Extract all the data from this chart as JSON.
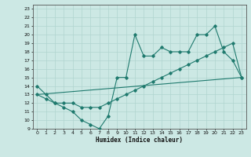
{
  "xlabel": "Humidex (Indice chaleur)",
  "xlim": [
    -0.5,
    23.5
  ],
  "ylim": [
    9,
    23.5
  ],
  "xticks": [
    0,
    1,
    2,
    3,
    4,
    5,
    6,
    7,
    8,
    9,
    10,
    11,
    12,
    13,
    14,
    15,
    16,
    17,
    18,
    19,
    20,
    21,
    22,
    23
  ],
  "yticks": [
    9,
    10,
    11,
    12,
    13,
    14,
    15,
    16,
    17,
    18,
    19,
    20,
    21,
    22,
    23
  ],
  "line_color": "#1f7a6e",
  "bg_color": "#cce8e4",
  "grid_color": "#b0d4cf",
  "line1_x": [
    0,
    1,
    2,
    3,
    4,
    5,
    6,
    7,
    8,
    9,
    10,
    11,
    12,
    13,
    14,
    15,
    16,
    17,
    18,
    19,
    20,
    21,
    22,
    23
  ],
  "line1_y": [
    14,
    13,
    12,
    11.5,
    11,
    10,
    9.5,
    9,
    10.5,
    15,
    15,
    20,
    17.5,
    17.5,
    18.5,
    18,
    18,
    18,
    20,
    20,
    21,
    18,
    17,
    15
  ],
  "line2_x": [
    0,
    1,
    2,
    3,
    4,
    5,
    6,
    7,
    8,
    9,
    10,
    11,
    12,
    13,
    14,
    15,
    16,
    17,
    18,
    19,
    20,
    21,
    22,
    23
  ],
  "line2_y": [
    13,
    12.5,
    12,
    12,
    12,
    11.5,
    11.5,
    11.5,
    12,
    12.5,
    13,
    13.5,
    14,
    14.5,
    15,
    15.5,
    16,
    16.5,
    17,
    17.5,
    18,
    18.5,
    19,
    15
  ],
  "line3_x": [
    0,
    23
  ],
  "line3_y": [
    13,
    15
  ]
}
